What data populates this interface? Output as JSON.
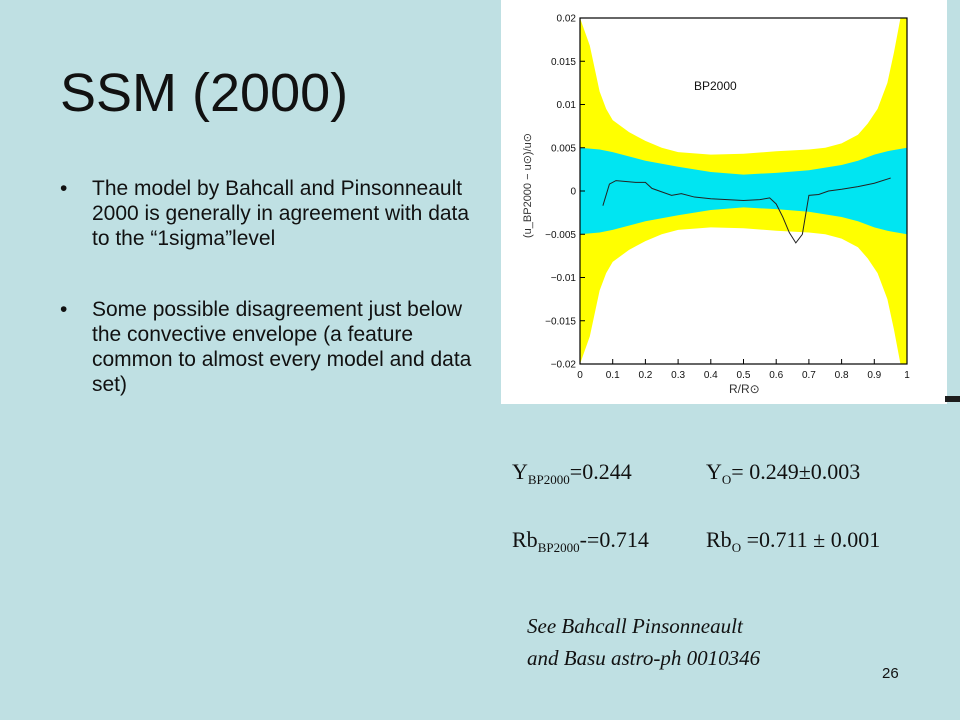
{
  "slide": {
    "title": "SSM (2000)",
    "bullets": [
      "The model by Bahcall and Pinsonneault 2000 is generally in agreement with data to the “1sigma”level",
      "Some possible disagreement just below the convective envelope (a feature common to almost every model and data set)"
    ],
    "bullet_glyph": "•",
    "formulas": {
      "y_model_main": "Y",
      "y_model_sub": "BP2000",
      "y_model_rest": "=0.244",
      "y_obs_main": "Y",
      "y_obs_sub": "O",
      "y_obs_rest": "= 0.249±0.003",
      "rb_model_main": "Rb",
      "rb_model_sub": "BP2000",
      "rb_model_rest": "-=0.714",
      "rb_obs_main": "Rb",
      "rb_obs_sub": "O",
      "rb_obs_rest": " =0.711 ± 0.001"
    },
    "reference_line1": "See  Bahcall  Pinsonneault",
    "reference_line2": "and Basu astro-ph 0010346",
    "page_number": "26"
  },
  "chart_data": {
    "type": "line",
    "annotation": "BP2000",
    "xlabel": "R/R⊙",
    "ylabel": "(u_BP2000 − u⊙)/u⊙",
    "xlim": [
      0,
      1
    ],
    "ylim": [
      -0.02,
      0.02
    ],
    "xticks": [
      "0",
      "0.1",
      "0.2",
      "0.3",
      "0.4",
      "0.5",
      "0.6",
      "0.7",
      "0.8",
      "0.9",
      "1"
    ],
    "yticks": [
      "0.02",
      "0.015",
      "0.01",
      "0.005",
      "0",
      "−0.005",
      "−0.01",
      "−0.015",
      "−0.02"
    ],
    "colors": {
      "outer_band": "#ffff00",
      "inner_band": "#00e5f2",
      "curve": "#222222",
      "frame": "#000000"
    },
    "outer_band_halfwidth": {
      "x": [
        0.0,
        0.03,
        0.06,
        0.08,
        0.1,
        0.15,
        0.2,
        0.25,
        0.3,
        0.4,
        0.5,
        0.6,
        0.7,
        0.75,
        0.8,
        0.85,
        0.88,
        0.91,
        0.94,
        0.96,
        0.98,
        1.0
      ],
      "values": [
        0.02,
        0.0168,
        0.0115,
        0.0095,
        0.0082,
        0.0068,
        0.0058,
        0.005,
        0.0045,
        0.0042,
        0.0043,
        0.0046,
        0.0048,
        0.005,
        0.0055,
        0.0065,
        0.0078,
        0.0095,
        0.0125,
        0.016,
        0.02,
        0.02
      ]
    },
    "inner_band_halfwidth": {
      "x": [
        0.0,
        0.06,
        0.1,
        0.2,
        0.3,
        0.4,
        0.5,
        0.6,
        0.7,
        0.8,
        0.85,
        0.9,
        0.94,
        1.0
      ],
      "values": [
        0.005,
        0.0048,
        0.0045,
        0.0035,
        0.0028,
        0.0022,
        0.0019,
        0.0021,
        0.0024,
        0.003,
        0.0035,
        0.0042,
        0.0046,
        0.005
      ]
    },
    "series": [
      {
        "x": [
          0.07,
          0.09,
          0.11,
          0.14,
          0.17,
          0.2,
          0.22,
          0.25,
          0.28,
          0.31,
          0.35,
          0.4,
          0.45,
          0.5,
          0.55,
          0.58,
          0.6,
          0.62,
          0.64,
          0.66,
          0.68,
          0.7,
          0.73,
          0.76,
          0.8,
          0.85,
          0.9,
          0.95
        ],
        "values": [
          -0.0017,
          0.0008,
          0.0012,
          0.0011,
          0.001,
          0.001,
          0.0003,
          -0.0001,
          -0.0005,
          -0.0003,
          -0.0007,
          -0.0009,
          -0.001,
          -0.0011,
          -0.001,
          -0.0008,
          -0.0015,
          -0.003,
          -0.0048,
          -0.006,
          -0.005,
          -0.0005,
          -0.0004,
          0.0,
          0.0002,
          0.0005,
          0.0009,
          0.0015
        ]
      }
    ]
  }
}
